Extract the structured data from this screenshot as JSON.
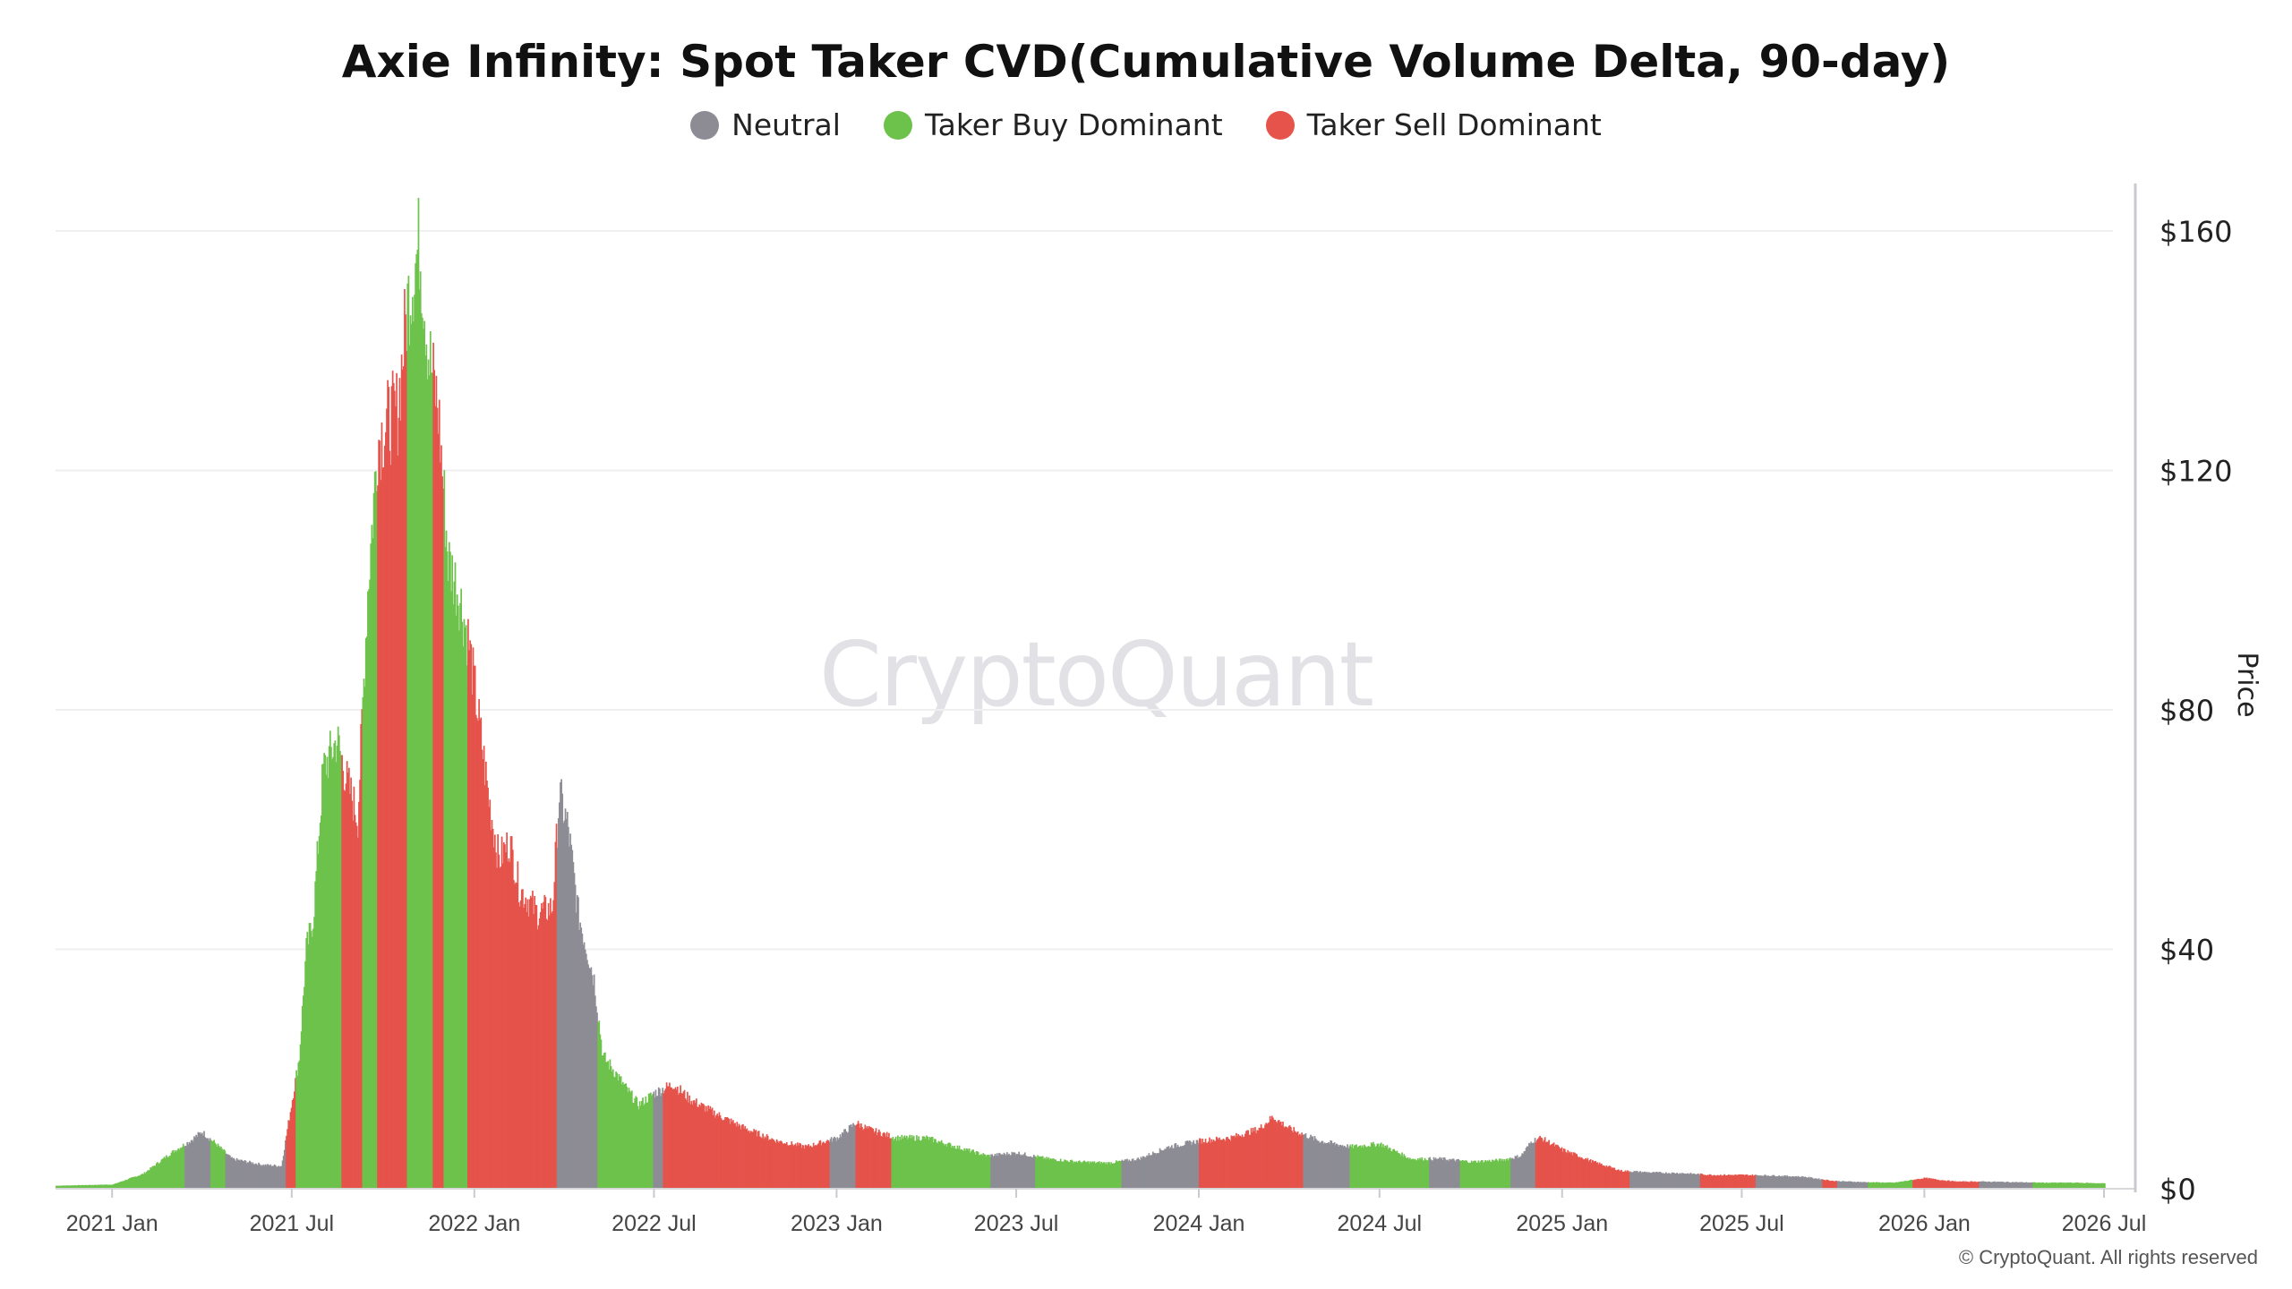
{
  "chart_data": {
    "type": "bar",
    "title": "Axie Infinity: Spot Taker CVD(Cumulative Volume Delta, 90-day)",
    "ylabel": "Price",
    "y_axis_side": "right",
    "ylim": [
      0,
      160
    ],
    "yticks": [
      {
        "value": 0,
        "label": "$0"
      },
      {
        "value": 40,
        "label": "$40"
      },
      {
        "value": 80,
        "label": "$80"
      },
      {
        "value": 120,
        "label": "$120"
      },
      {
        "value": 160,
        "label": "$160"
      }
    ],
    "xlim": [
      "2020-11-05",
      "2026-07-10"
    ],
    "xticks": [
      {
        "date": "2021-01-01",
        "label": "2021 Jan"
      },
      {
        "date": "2021-07-01",
        "label": "2021 Jul"
      },
      {
        "date": "2022-01-01",
        "label": "2022 Jan"
      },
      {
        "date": "2022-07-01",
        "label": "2022 Jul"
      },
      {
        "date": "2023-01-01",
        "label": "2023 Jan"
      },
      {
        "date": "2023-07-01",
        "label": "2023 Jul"
      },
      {
        "date": "2024-01-01",
        "label": "2024 Jan"
      },
      {
        "date": "2024-07-01",
        "label": "2024 Jul"
      },
      {
        "date": "2025-01-01",
        "label": "2025 Jan"
      },
      {
        "date": "2025-07-01",
        "label": "2025 Jul"
      },
      {
        "date": "2026-01-01",
        "label": "2026 Jan"
      },
      {
        "date": "2026-07-01",
        "label": "2026 Jul"
      }
    ],
    "grid": true,
    "legend_position": "top-center",
    "legend": [
      {
        "key": "neutral",
        "label": "Neutral",
        "color": "#8d8c94"
      },
      {
        "key": "buy",
        "label": "Taker Buy Dominant",
        "color": "#6cc24a"
      },
      {
        "key": "sell",
        "label": "Taker Sell Dominant",
        "color": "#e5534b"
      }
    ],
    "price_points": [
      [
        "2020-11-05",
        0.5
      ],
      [
        "2020-12-01",
        0.6
      ],
      [
        "2021-01-01",
        0.7
      ],
      [
        "2021-02-01",
        2.5
      ],
      [
        "2021-03-01",
        6
      ],
      [
        "2021-03-20",
        8
      ],
      [
        "2021-04-01",
        9.5
      ],
      [
        "2021-04-15",
        7.5
      ],
      [
        "2021-05-01",
        5
      ],
      [
        "2021-06-01",
        4
      ],
      [
        "2021-06-20",
        3.8
      ],
      [
        "2021-07-01",
        15
      ],
      [
        "2021-07-08",
        22
      ],
      [
        "2021-07-15",
        40
      ],
      [
        "2021-07-22",
        45
      ],
      [
        "2021-08-01",
        70
      ],
      [
        "2021-08-15",
        75
      ],
      [
        "2021-08-25",
        68
      ],
      [
        "2021-09-05",
        62
      ],
      [
        "2021-09-15",
        100
      ],
      [
        "2021-09-25",
        125
      ],
      [
        "2021-10-05",
        128
      ],
      [
        "2021-10-15",
        130
      ],
      [
        "2021-10-25",
        148
      ],
      [
        "2021-11-06",
        158
      ],
      [
        "2021-11-15",
        140
      ],
      [
        "2021-11-25",
        130
      ],
      [
        "2021-12-05",
        105
      ],
      [
        "2021-12-15",
        100
      ],
      [
        "2021-12-25",
        92
      ],
      [
        "2022-01-05",
        78
      ],
      [
        "2022-01-15",
        65
      ],
      [
        "2022-01-25",
        55
      ],
      [
        "2022-02-05",
        58
      ],
      [
        "2022-02-15",
        50
      ],
      [
        "2022-02-25",
        48
      ],
      [
        "2022-03-05",
        46
      ],
      [
        "2022-03-20",
        47
      ],
      [
        "2022-03-27",
        66
      ],
      [
        "2022-04-05",
        60
      ],
      [
        "2022-04-15",
        46
      ],
      [
        "2022-05-01",
        35
      ],
      [
        "2022-05-10",
        22
      ],
      [
        "2022-05-20",
        20
      ],
      [
        "2022-06-01",
        17
      ],
      [
        "2022-06-15",
        14
      ],
      [
        "2022-07-01",
        16
      ],
      [
        "2022-07-20",
        17.5
      ],
      [
        "2022-08-05",
        15
      ],
      [
        "2022-09-01",
        12.5
      ],
      [
        "2022-10-01",
        10
      ],
      [
        "2022-11-01",
        8
      ],
      [
        "2022-12-01",
        7
      ],
      [
        "2023-01-01",
        8.5
      ],
      [
        "2023-01-20",
        11
      ],
      [
        "2023-02-01",
        10
      ],
      [
        "2023-03-01",
        8.5
      ],
      [
        "2023-04-01",
        8.5
      ],
      [
        "2023-05-01",
        7
      ],
      [
        "2023-06-01",
        5.5
      ],
      [
        "2023-07-01",
        6
      ],
      [
        "2023-08-01",
        5
      ],
      [
        "2023-09-01",
        4.5
      ],
      [
        "2023-10-01",
        4.3
      ],
      [
        "2023-11-01",
        5
      ],
      [
        "2023-12-01",
        7
      ],
      [
        "2024-01-01",
        8
      ],
      [
        "2024-02-01",
        8.5
      ],
      [
        "2024-03-01",
        10
      ],
      [
        "2024-03-15",
        12
      ],
      [
        "2024-04-01",
        10
      ],
      [
        "2024-05-01",
        8
      ],
      [
        "2024-06-01",
        7
      ],
      [
        "2024-07-01",
        7.5
      ],
      [
        "2024-08-01",
        5
      ],
      [
        "2024-09-01",
        5
      ],
      [
        "2024-10-01",
        4.5
      ],
      [
        "2024-11-01",
        4.8
      ],
      [
        "2024-11-20",
        5.5
      ],
      [
        "2024-12-01",
        8
      ],
      [
        "2024-12-10",
        8.5
      ],
      [
        "2025-01-01",
        6.5
      ],
      [
        "2025-02-01",
        4.5
      ],
      [
        "2025-03-01",
        3
      ],
      [
        "2025-04-01",
        2.7
      ],
      [
        "2025-05-01",
        2.6
      ],
      [
        "2025-06-01",
        2.3
      ],
      [
        "2025-07-01",
        2.3
      ],
      [
        "2025-08-01",
        2.2
      ],
      [
        "2025-09-01",
        2
      ],
      [
        "2025-10-01",
        1.3
      ],
      [
        "2025-11-01",
        1.1
      ],
      [
        "2025-12-01",
        1.0
      ],
      [
        "2026-01-01",
        1.8
      ],
      [
        "2026-01-15",
        1.5
      ],
      [
        "2026-02-01",
        1.2
      ],
      [
        "2026-03-01",
        1.2
      ],
      [
        "2026-04-01",
        1.1
      ],
      [
        "2026-05-01",
        1.0
      ],
      [
        "2026-06-01",
        1.0
      ],
      [
        "2026-07-01",
        0.9
      ]
    ],
    "regimes": [
      [
        "2020-11-05",
        "2021-02-20",
        "buy"
      ],
      [
        "2021-02-20",
        "2021-03-15",
        "buy"
      ],
      [
        "2021-03-15",
        "2021-04-10",
        "neutral"
      ],
      [
        "2021-04-10",
        "2021-04-25",
        "buy"
      ],
      [
        "2021-04-25",
        "2021-06-25",
        "neutral"
      ],
      [
        "2021-06-25",
        "2021-07-05",
        "sell"
      ],
      [
        "2021-07-05",
        "2021-08-20",
        "buy"
      ],
      [
        "2021-08-20",
        "2021-09-10",
        "sell"
      ],
      [
        "2021-09-10",
        "2021-09-25",
        "buy"
      ],
      [
        "2021-09-25",
        "2021-10-25",
        "sell"
      ],
      [
        "2021-10-25",
        "2021-11-20",
        "buy"
      ],
      [
        "2021-11-20",
        "2021-12-01",
        "sell"
      ],
      [
        "2021-12-01",
        "2021-12-25",
        "buy"
      ],
      [
        "2021-12-25",
        "2022-03-25",
        "sell"
      ],
      [
        "2022-03-25",
        "2022-05-05",
        "neutral"
      ],
      [
        "2022-05-05",
        "2022-06-30",
        "buy"
      ],
      [
        "2022-06-30",
        "2022-07-10",
        "neutral"
      ],
      [
        "2022-07-10",
        "2022-12-25",
        "sell"
      ],
      [
        "2022-12-25",
        "2023-01-20",
        "neutral"
      ],
      [
        "2023-01-20",
        "2023-02-25",
        "sell"
      ],
      [
        "2023-02-25",
        "2023-06-05",
        "buy"
      ],
      [
        "2023-06-05",
        "2023-07-20",
        "neutral"
      ],
      [
        "2023-07-20",
        "2023-10-15",
        "buy"
      ],
      [
        "2023-10-15",
        "2024-01-01",
        "neutral"
      ],
      [
        "2024-01-01",
        "2024-04-15",
        "sell"
      ],
      [
        "2024-04-15",
        "2024-06-01",
        "neutral"
      ],
      [
        "2024-06-01",
        "2024-08-20",
        "buy"
      ],
      [
        "2024-08-20",
        "2024-09-20",
        "neutral"
      ],
      [
        "2024-09-20",
        "2024-11-10",
        "buy"
      ],
      [
        "2024-11-10",
        "2024-12-05",
        "neutral"
      ],
      [
        "2024-12-05",
        "2025-03-10",
        "sell"
      ],
      [
        "2025-03-10",
        "2025-05-20",
        "neutral"
      ],
      [
        "2025-05-20",
        "2025-07-15",
        "sell"
      ],
      [
        "2025-07-15",
        "2025-09-20",
        "neutral"
      ],
      [
        "2025-09-20",
        "2025-10-05",
        "sell"
      ],
      [
        "2025-10-05",
        "2025-11-05",
        "neutral"
      ],
      [
        "2025-11-05",
        "2025-12-20",
        "buy"
      ],
      [
        "2025-12-20",
        "2026-02-25",
        "sell"
      ],
      [
        "2026-02-25",
        "2026-04-20",
        "neutral"
      ],
      [
        "2026-04-20",
        "2026-07-01",
        "buy"
      ]
    ]
  },
  "watermark": "CryptoQuant",
  "credit": "© CryptoQuant. All rights reserved"
}
